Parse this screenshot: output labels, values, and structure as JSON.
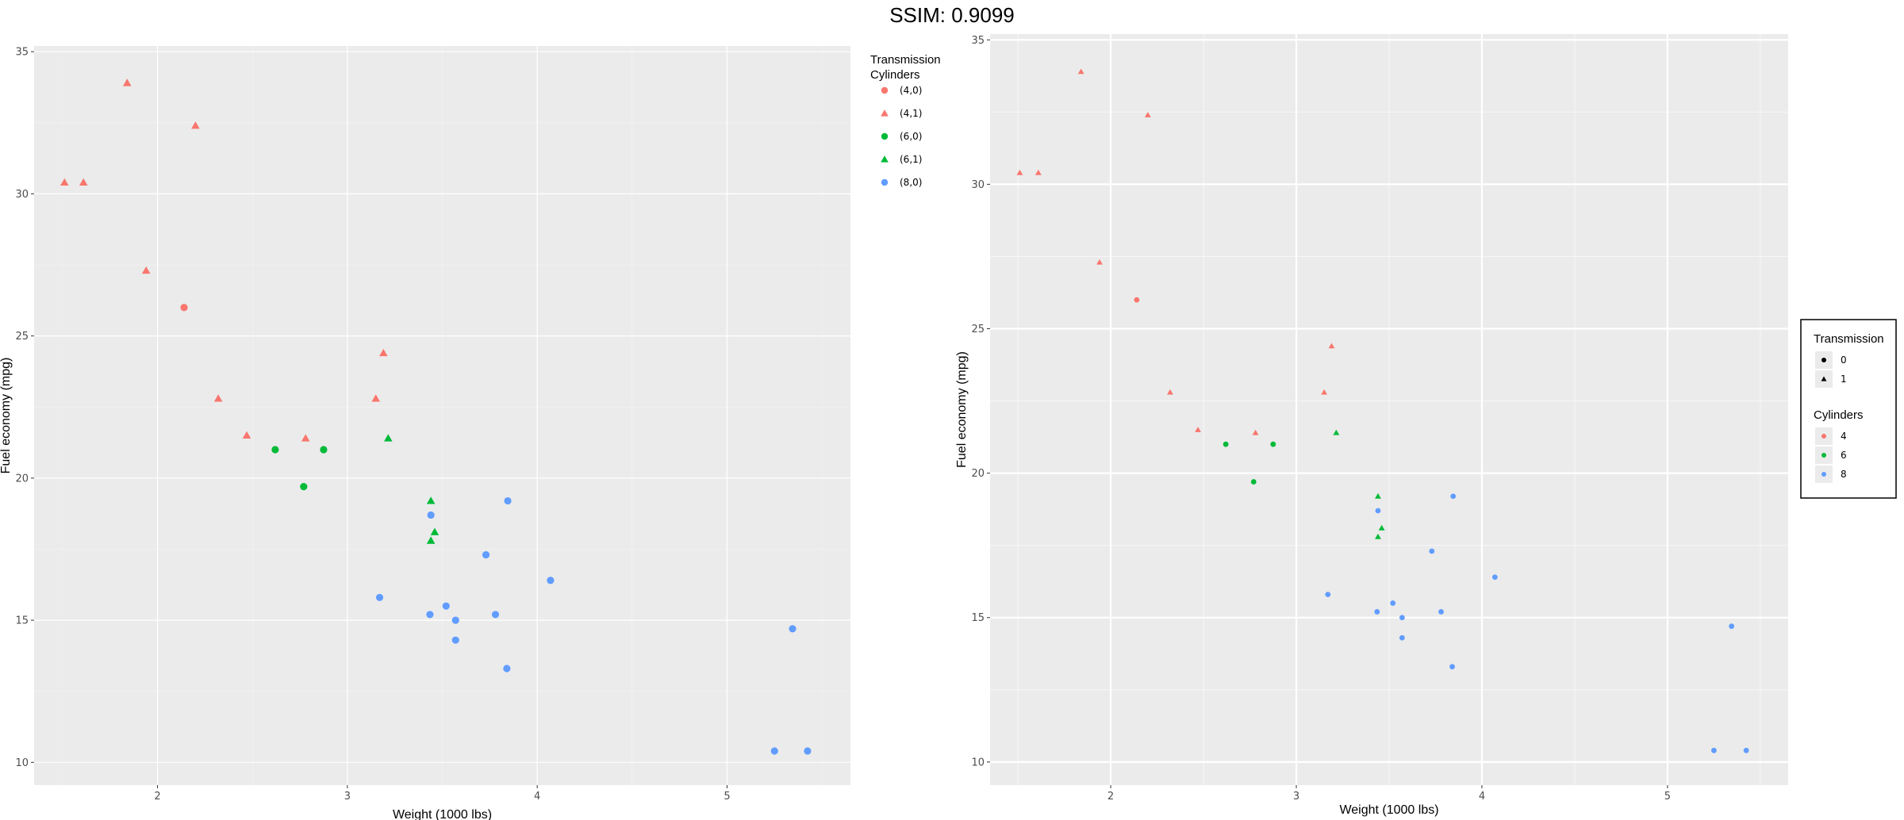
{
  "header": {
    "title": "SSIM: 0.9099"
  },
  "chart_data": [
    {
      "type": "scatter",
      "xlabel": "Weight (1000 lbs)",
      "ylabel": "Fuel economy (mpg)",
      "xlim": [
        1.35,
        5.65
      ],
      "ylim": [
        9.2,
        35.2
      ],
      "xticks": [
        "2",
        "3",
        "4",
        "5"
      ],
      "yticks": [
        "10",
        "15",
        "20",
        "25",
        "30",
        "35"
      ],
      "grid": true,
      "legend_position": "right-top",
      "legend_title": "Transmission\nCylinders",
      "legend": [
        {
          "label": "(4,0)",
          "color": "#F8766D",
          "shape": "circle"
        },
        {
          "label": "(4,1)",
          "color": "#F8766D",
          "shape": "triangle"
        },
        {
          "label": "(6,0)",
          "color": "#00BA38",
          "shape": "circle"
        },
        {
          "label": "(6,1)",
          "color": "#00BA38",
          "shape": "triangle"
        },
        {
          "label": "(8,0)",
          "color": "#619CFF",
          "shape": "circle"
        }
      ],
      "series": [
        {
          "name": "(4,0)",
          "color": "#F8766D",
          "shape": "circle",
          "points": [
            [
              2.14,
              26.0
            ]
          ]
        },
        {
          "name": "(4,1)",
          "color": "#F8766D",
          "shape": "triangle",
          "points": [
            [
              1.51,
              30.4
            ],
            [
              1.61,
              30.4
            ],
            [
              1.84,
              33.9
            ],
            [
              1.94,
              27.3
            ],
            [
              2.2,
              32.4
            ],
            [
              2.32,
              22.8
            ],
            [
              2.47,
              21.5
            ],
            [
              2.78,
              21.4
            ],
            [
              3.15,
              22.8
            ],
            [
              3.19,
              24.4
            ]
          ]
        },
        {
          "name": "(6,0)",
          "color": "#00BA38",
          "shape": "circle",
          "points": [
            [
              2.62,
              21.0
            ],
            [
              2.77,
              19.7
            ],
            [
              2.875,
              21.0
            ]
          ]
        },
        {
          "name": "(6,1)",
          "color": "#00BA38",
          "shape": "triangle",
          "points": [
            [
              3.215,
              21.4
            ],
            [
              3.44,
              19.2
            ],
            [
              3.44,
              17.8
            ],
            [
              3.46,
              18.1
            ]
          ]
        },
        {
          "name": "(8,0)",
          "color": "#619CFF",
          "shape": "circle",
          "points": [
            [
              3.17,
              15.8
            ],
            [
              3.435,
              15.2
            ],
            [
              3.44,
              18.7
            ],
            [
              3.52,
              15.5
            ],
            [
              3.57,
              15.0
            ],
            [
              3.57,
              14.3
            ],
            [
              3.73,
              17.3
            ],
            [
              3.78,
              15.2
            ],
            [
              3.84,
              13.3
            ],
            [
              3.845,
              19.2
            ],
            [
              4.07,
              16.4
            ],
            [
              5.25,
              10.4
            ],
            [
              5.345,
              14.7
            ],
            [
              5.424,
              10.4
            ]
          ]
        }
      ]
    },
    {
      "type": "scatter",
      "xlabel": "Weight (1000 lbs)",
      "ylabel": "Fuel economy (mpg)",
      "xlim": [
        1.35,
        5.65
      ],
      "ylim": [
        9.2,
        35.2
      ],
      "xticks": [
        "2",
        "3",
        "4",
        "5"
      ],
      "yticks": [
        "10",
        "15",
        "20",
        "25",
        "30",
        "35"
      ],
      "grid": true,
      "legend_position": "right",
      "legend_box": true,
      "legend_groups": [
        {
          "title": "Transmission",
          "items": [
            {
              "label": "0",
              "color": "#000000",
              "shape": "circle"
            },
            {
              "label": "1",
              "color": "#000000",
              "shape": "triangle"
            }
          ]
        },
        {
          "title": "Cylinders",
          "items": [
            {
              "label": "4",
              "color": "#F8766D",
              "shape": "circle"
            },
            {
              "label": "6",
              "color": "#00BA38",
              "shape": "circle"
            },
            {
              "label": "8",
              "color": "#619CFF",
              "shape": "circle"
            }
          ]
        }
      ],
      "series": [
        {
          "name": "4 / 0",
          "color": "#F8766D",
          "shape": "circle",
          "points": [
            [
              2.14,
              26.0
            ]
          ]
        },
        {
          "name": "4 / 1",
          "color": "#F8766D",
          "shape": "triangle",
          "points": [
            [
              1.51,
              30.4
            ],
            [
              1.61,
              30.4
            ],
            [
              1.84,
              33.9
            ],
            [
              1.94,
              27.3
            ],
            [
              2.2,
              32.4
            ],
            [
              2.32,
              22.8
            ],
            [
              2.47,
              21.5
            ],
            [
              2.78,
              21.4
            ],
            [
              3.15,
              22.8
            ],
            [
              3.19,
              24.4
            ]
          ]
        },
        {
          "name": "6 / 0",
          "color": "#00BA38",
          "shape": "circle",
          "points": [
            [
              2.62,
              21.0
            ],
            [
              2.77,
              19.7
            ],
            [
              2.875,
              21.0
            ]
          ]
        },
        {
          "name": "6 / 1",
          "color": "#00BA38",
          "shape": "triangle",
          "points": [
            [
              3.215,
              21.4
            ],
            [
              3.44,
              19.2
            ],
            [
              3.44,
              17.8
            ],
            [
              3.46,
              18.1
            ]
          ]
        },
        {
          "name": "8 / 0",
          "color": "#619CFF",
          "shape": "circle",
          "points": [
            [
              3.17,
              15.8
            ],
            [
              3.435,
              15.2
            ],
            [
              3.44,
              18.7
            ],
            [
              3.52,
              15.5
            ],
            [
              3.57,
              15.0
            ],
            [
              3.57,
              14.3
            ],
            [
              3.73,
              17.3
            ],
            [
              3.78,
              15.2
            ],
            [
              3.84,
              13.3
            ],
            [
              3.845,
              19.2
            ],
            [
              4.07,
              16.4
            ],
            [
              5.25,
              10.4
            ],
            [
              5.345,
              14.7
            ],
            [
              5.424,
              10.4
            ]
          ]
        }
      ]
    }
  ]
}
